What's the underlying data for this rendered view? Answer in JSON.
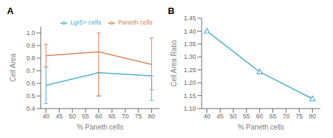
{
  "chart_data": [
    {
      "type": "line",
      "title": "A",
      "xlabel": "% Paneth cells",
      "ylabel": "Cell Area",
      "x": [
        40,
        60,
        80
      ],
      "series": [
        {
          "name": "Lgr5+ cells",
          "color": "#4daecc",
          "values": [
            0.585,
            0.685,
            0.66
          ],
          "yerr_low": [
            0.145,
            0.185,
            0.195
          ],
          "yerr_high": [
            0.145,
            0.0,
            0.0
          ]
        },
        {
          "name": "Paneth cells",
          "color": "#d4845a",
          "values": [
            0.82,
            0.85,
            0.75
          ],
          "yerr_low": [
            0.09,
            0.35,
            0.2
          ],
          "yerr_high": [
            0.09,
            0.15,
            0.21
          ]
        }
      ],
      "xlim": [
        38,
        83
      ],
      "ylim": [
        0.4,
        1.05
      ],
      "xticks": [
        40,
        45,
        50,
        55,
        60,
        65,
        70,
        75,
        80
      ],
      "yticks": [
        0.4,
        0.5,
        0.6,
        0.7,
        0.8,
        0.9,
        {
          "value": 1.0,
          "label": "1.0"
        }
      ],
      "legend": "upper right"
    },
    {
      "type": "line",
      "title": "B",
      "xlabel": "% Paneth cells",
      "ylabel": "Cell Area Ratio",
      "x": [
        40,
        60,
        80
      ],
      "values": [
        1.4,
        1.242,
        1.138
      ],
      "color": "#4daecc",
      "marker": "triangle",
      "xlim": [
        38,
        83
      ],
      "ylim": [
        1.1,
        1.45
      ],
      "xticks": [
        40,
        45,
        50,
        55,
        60,
        65,
        70,
        75,
        80
      ],
      "yticks": [
        {
          "value": 1.1,
          "label": "1.10"
        },
        1.15,
        {
          "value": 1.2,
          "label": "1.20"
        },
        1.25,
        {
          "value": 1.3,
          "label": "1.30"
        },
        1.35,
        {
          "value": 1.4,
          "label": "1.40"
        },
        1.45
      ]
    }
  ]
}
